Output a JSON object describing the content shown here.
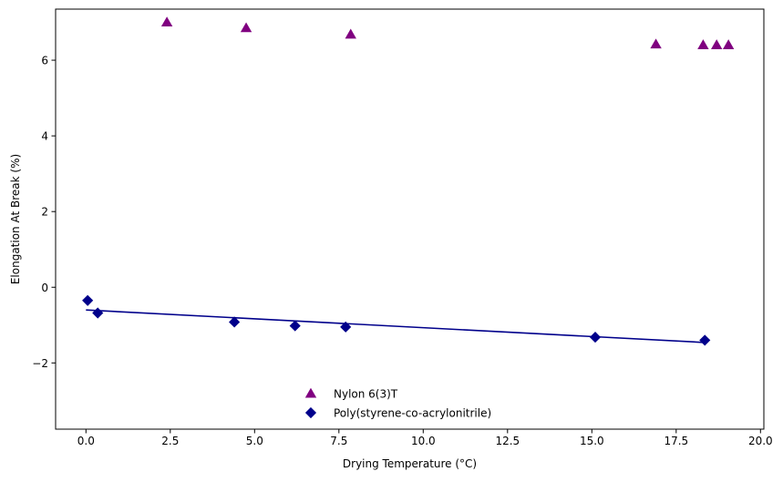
{
  "chart_data": {
    "type": "scatter",
    "title": "",
    "xlabel": "Drying Temperature (°C)",
    "ylabel": "Elongation At Break (%)",
    "xlim": [
      -0.9,
      20.1
    ],
    "ylim": [
      -3.75,
      7.35
    ],
    "xticks": [
      0.0,
      2.5,
      5.0,
      7.5,
      10.0,
      12.5,
      15.0,
      17.5,
      20.0
    ],
    "xtick_labels": [
      "0.0",
      "2.5",
      "5.0",
      "7.5",
      "10.0",
      "12.5",
      "15.0",
      "17.5",
      "20.0"
    ],
    "yticks": [
      -2,
      0,
      2,
      4,
      6
    ],
    "ytick_labels": [
      "−2",
      "0",
      "2",
      "4",
      "6"
    ],
    "grid": false,
    "legend_position": "lower-center",
    "series": [
      {
        "name": "Nylon 6(3)T",
        "marker": "triangle",
        "color": "#800080",
        "x": [
          2.4,
          4.75,
          7.85,
          16.9,
          18.3,
          18.7,
          19.05
        ],
        "y": [
          7.0,
          6.85,
          6.68,
          6.42,
          6.4,
          6.4,
          6.4
        ]
      },
      {
        "name": "Poly(styrene-co-acrylonitrile)",
        "marker": "diamond",
        "color": "#00008B",
        "x": [
          0.05,
          0.35,
          4.4,
          6.2,
          7.7,
          15.1,
          18.35
        ],
        "y": [
          -0.35,
          -0.68,
          -0.92,
          -1.02,
          -1.05,
          -1.32,
          -1.4
        ],
        "fit_line": {
          "x": [
            0.0,
            18.35
          ],
          "y": [
            -0.6,
            -1.46
          ]
        }
      }
    ]
  }
}
